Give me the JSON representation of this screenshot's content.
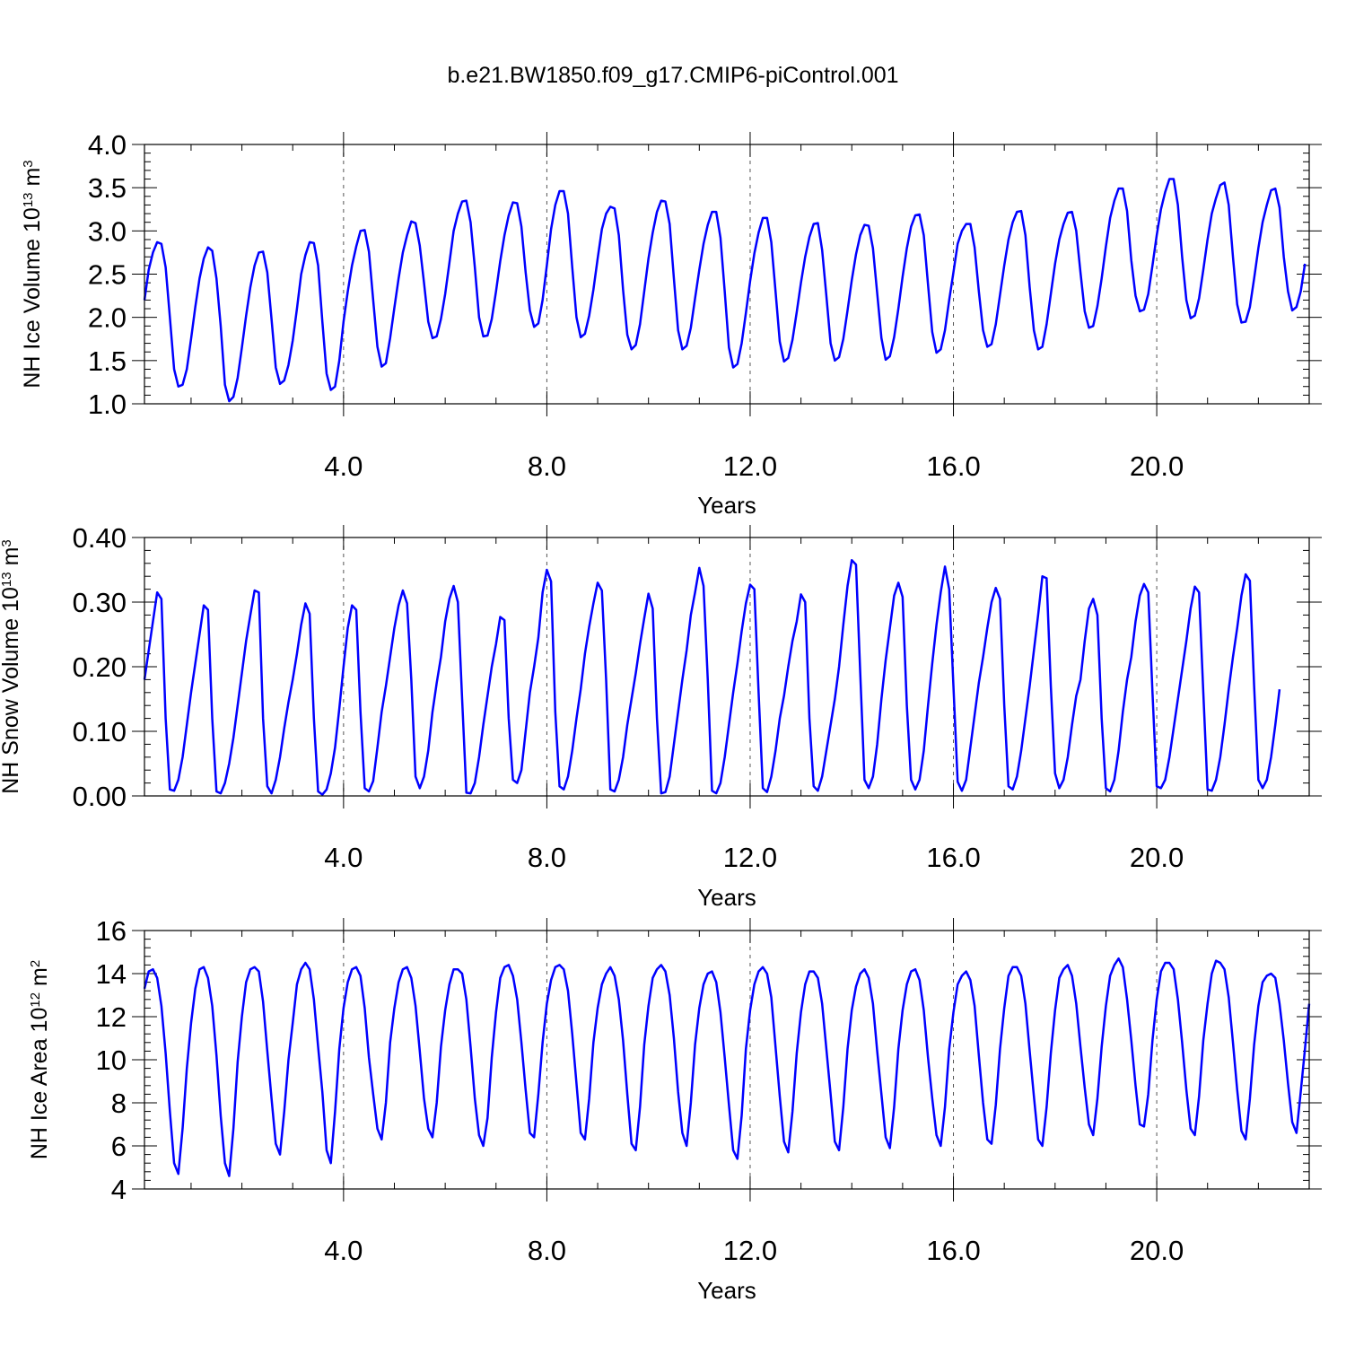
{
  "title": "b.e21.BW1850.f09_g17.CMIP6-piControl.001",
  "line_color": "#0000ff",
  "chart_data": [
    {
      "type": "line",
      "title": "b.e21.BW1850.f09_g17.CMIP6-piControl.001",
      "xlabel": "Years",
      "ylabel": {
        "main": "NH Ice Volume 10",
        "exp": "13",
        "unit": " m",
        "unit_exp": "3"
      },
      "xlim": [
        0.083,
        23.0
      ],
      "ylim": [
        1.0,
        4.0
      ],
      "xticks": [
        4.0,
        8.0,
        12.0,
        16.0,
        20.0
      ],
      "xtick_labels": [
        "4.0",
        "8.0",
        "12.0",
        "16.0",
        "20.0"
      ],
      "yticks": [
        1.0,
        1.5,
        2.0,
        2.5,
        3.0,
        3.5,
        4.0
      ],
      "ytick_labels": [
        "1.0",
        "1.5",
        "2.0",
        "2.5",
        "3.0",
        "3.5",
        "4.0"
      ],
      "grid": "dashed vertical at major x ticks",
      "series": [
        {
          "x_start": 0.083,
          "x_step": 0.0833333,
          "y": [
            2.2,
            2.55,
            2.75,
            2.87,
            2.85,
            2.58,
            2.0,
            1.4,
            1.2,
            1.22,
            1.4,
            1.75,
            2.12,
            2.45,
            2.68,
            2.81,
            2.77,
            2.45,
            1.9,
            1.22,
            1.03,
            1.08,
            1.3,
            1.65,
            2.02,
            2.35,
            2.6,
            2.75,
            2.76,
            2.52,
            1.98,
            1.42,
            1.23,
            1.27,
            1.45,
            1.73,
            2.1,
            2.5,
            2.72,
            2.87,
            2.86,
            2.6,
            1.95,
            1.35,
            1.16,
            1.2,
            1.5,
            1.95,
            2.3,
            2.6,
            2.82,
            3.0,
            3.01,
            2.76,
            2.2,
            1.66,
            1.43,
            1.47,
            1.76,
            2.11,
            2.45,
            2.75,
            2.95,
            3.11,
            3.09,
            2.83,
            2.4,
            1.95,
            1.76,
            1.78,
            1.98,
            2.27,
            2.63,
            3.0,
            3.2,
            3.34,
            3.35,
            3.1,
            2.58,
            2.0,
            1.78,
            1.79,
            1.98,
            2.3,
            2.65,
            2.95,
            3.18,
            3.33,
            3.32,
            3.05,
            2.52,
            2.08,
            1.89,
            1.93,
            2.2,
            2.6,
            3.02,
            3.3,
            3.46,
            3.46,
            3.2,
            2.58,
            2.0,
            1.77,
            1.81,
            2.02,
            2.32,
            2.68,
            3.02,
            3.2,
            3.28,
            3.26,
            2.95,
            2.32,
            1.8,
            1.63,
            1.68,
            1.92,
            2.3,
            2.68,
            2.98,
            3.22,
            3.35,
            3.34,
            3.08,
            2.45,
            1.85,
            1.63,
            1.67,
            1.88,
            2.22,
            2.55,
            2.85,
            3.07,
            3.22,
            3.22,
            2.92,
            2.3,
            1.65,
            1.42,
            1.46,
            1.7,
            2.05,
            2.42,
            2.74,
            2.98,
            3.15,
            3.15,
            2.87,
            2.3,
            1.72,
            1.49,
            1.53,
            1.74,
            2.06,
            2.4,
            2.7,
            2.93,
            3.08,
            3.09,
            2.78,
            2.25,
            1.7,
            1.5,
            1.54,
            1.75,
            2.08,
            2.43,
            2.73,
            2.95,
            3.07,
            3.06,
            2.8,
            2.28,
            1.76,
            1.51,
            1.55,
            1.77,
            2.1,
            2.47,
            2.8,
            3.05,
            3.18,
            3.19,
            2.95,
            2.38,
            1.83,
            1.59,
            1.63,
            1.85,
            2.2,
            2.52,
            2.85,
            3.0,
            3.08,
            3.08,
            2.81,
            2.3,
            1.85,
            1.66,
            1.69,
            1.92,
            2.26,
            2.6,
            2.9,
            3.1,
            3.22,
            3.23,
            2.95,
            2.35,
            1.85,
            1.63,
            1.66,
            1.92,
            2.27,
            2.62,
            2.9,
            3.08,
            3.21,
            3.22,
            3.0,
            2.52,
            2.07,
            1.88,
            1.9,
            2.13,
            2.45,
            2.82,
            3.15,
            3.35,
            3.49,
            3.49,
            3.23,
            2.66,
            2.25,
            2.07,
            2.09,
            2.27,
            2.6,
            2.95,
            3.25,
            3.45,
            3.6,
            3.6,
            3.3,
            2.7,
            2.2,
            1.99,
            2.02,
            2.22,
            2.55,
            2.9,
            3.2,
            3.38,
            3.53,
            3.56,
            3.3,
            2.7,
            2.15,
            1.94,
            1.95,
            2.12,
            2.45,
            2.8,
            3.1,
            3.3,
            3.47,
            3.49,
            3.27,
            2.7,
            2.3,
            2.08,
            2.12,
            2.3,
            2.62
          ]
        }
      ]
    },
    {
      "type": "line",
      "xlabel": "Years",
      "ylabel": {
        "main": "NH Snow Volume 10",
        "exp": "13",
        "unit": " m",
        "unit_exp": "3"
      },
      "xlim": [
        0.083,
        23.0
      ],
      "ylim": [
        0.0,
        0.4
      ],
      "xticks": [
        4.0,
        8.0,
        12.0,
        16.0,
        20.0
      ],
      "xtick_labels": [
        "4.0",
        "8.0",
        "12.0",
        "16.0",
        "20.0"
      ],
      "yticks": [
        0.0,
        0.1,
        0.2,
        0.3,
        0.4
      ],
      "ytick_labels": [
        "0.00",
        "0.10",
        "0.20",
        "0.30",
        "0.40"
      ],
      "grid": "dashed vertical at major x ticks",
      "series": [
        {
          "x_start": 0.083,
          "x_step": 0.0833333,
          "y": [
            0.18,
            0.225,
            0.27,
            0.315,
            0.305,
            0.12,
            0.01,
            0.008,
            0.025,
            0.06,
            0.11,
            0.16,
            0.205,
            0.25,
            0.295,
            0.288,
            0.12,
            0.007,
            0.004,
            0.02,
            0.05,
            0.09,
            0.14,
            0.19,
            0.24,
            0.28,
            0.318,
            0.315,
            0.12,
            0.015,
            0.004,
            0.025,
            0.06,
            0.105,
            0.145,
            0.18,
            0.22,
            0.265,
            0.298,
            0.282,
            0.12,
            0.007,
            0.002,
            0.01,
            0.035,
            0.075,
            0.135,
            0.2,
            0.26,
            0.295,
            0.288,
            0.13,
            0.012,
            0.007,
            0.023,
            0.075,
            0.13,
            0.17,
            0.215,
            0.26,
            0.295,
            0.318,
            0.298,
            0.18,
            0.03,
            0.012,
            0.03,
            0.07,
            0.13,
            0.175,
            0.215,
            0.27,
            0.305,
            0.325,
            0.3,
            0.15,
            0.005,
            0.004,
            0.02,
            0.06,
            0.11,
            0.155,
            0.2,
            0.235,
            0.277,
            0.272,
            0.12,
            0.025,
            0.02,
            0.04,
            0.1,
            0.16,
            0.2,
            0.245,
            0.315,
            0.35,
            0.332,
            0.13,
            0.015,
            0.01,
            0.03,
            0.07,
            0.12,
            0.165,
            0.22,
            0.262,
            0.298,
            0.33,
            0.318,
            0.18,
            0.01,
            0.007,
            0.025,
            0.06,
            0.11,
            0.15,
            0.19,
            0.235,
            0.275,
            0.313,
            0.29,
            0.12,
            0.004,
            0.006,
            0.03,
            0.08,
            0.13,
            0.18,
            0.225,
            0.28,
            0.315,
            0.353,
            0.325,
            0.18,
            0.008,
            0.004,
            0.02,
            0.06,
            0.11,
            0.16,
            0.205,
            0.255,
            0.298,
            0.327,
            0.32,
            0.16,
            0.012,
            0.006,
            0.03,
            0.07,
            0.12,
            0.155,
            0.2,
            0.24,
            0.27,
            0.312,
            0.3,
            0.12,
            0.015,
            0.008,
            0.03,
            0.07,
            0.11,
            0.15,
            0.2,
            0.265,
            0.325,
            0.365,
            0.358,
            0.19,
            0.025,
            0.012,
            0.03,
            0.08,
            0.15,
            0.21,
            0.26,
            0.31,
            0.33,
            0.308,
            0.14,
            0.025,
            0.01,
            0.025,
            0.07,
            0.14,
            0.205,
            0.265,
            0.315,
            0.355,
            0.32,
            0.17,
            0.022,
            0.008,
            0.025,
            0.075,
            0.125,
            0.175,
            0.215,
            0.26,
            0.3,
            0.322,
            0.305,
            0.14,
            0.015,
            0.01,
            0.03,
            0.07,
            0.12,
            0.17,
            0.225,
            0.28,
            0.34,
            0.337,
            0.17,
            0.035,
            0.012,
            0.025,
            0.06,
            0.11,
            0.155,
            0.18,
            0.24,
            0.29,
            0.305,
            0.28,
            0.12,
            0.012,
            0.007,
            0.025,
            0.07,
            0.13,
            0.18,
            0.215,
            0.27,
            0.31,
            0.328,
            0.315,
            0.16,
            0.015,
            0.012,
            0.025,
            0.06,
            0.105,
            0.15,
            0.195,
            0.24,
            0.29,
            0.324,
            0.315,
            0.16,
            0.01,
            0.008,
            0.025,
            0.06,
            0.11,
            0.165,
            0.215,
            0.26,
            0.31,
            0.343,
            0.333,
            0.17,
            0.025,
            0.012,
            0.025,
            0.06,
            0.11,
            0.165
          ]
        }
      ]
    },
    {
      "type": "line",
      "xlabel": "Years",
      "ylabel": {
        "main": "NH Ice Area 10",
        "exp": "12",
        "unit": " m",
        "unit_exp": "2"
      },
      "xlim": [
        0.083,
        23.0
      ],
      "ylim": [
        4,
        16
      ],
      "xticks": [
        4.0,
        8.0,
        12.0,
        16.0,
        20.0
      ],
      "xtick_labels": [
        "4.0",
        "8.0",
        "12.0",
        "16.0",
        "20.0"
      ],
      "yticks": [
        4,
        6,
        8,
        10,
        12,
        14,
        16
      ],
      "ytick_labels": [
        "4",
        "6",
        "8",
        "10",
        "12",
        "14",
        "16"
      ],
      "grid": "dashed vertical at major x ticks",
      "series": [
        {
          "x_start": 0.083,
          "x_step": 0.0833333,
          "y": [
            13.3,
            14.1,
            14.2,
            13.8,
            12.5,
            10.3,
            7.6,
            5.2,
            4.7,
            6.8,
            9.6,
            11.7,
            13.3,
            14.2,
            14.3,
            13.8,
            12.5,
            10.2,
            7.4,
            5.2,
            4.6,
            6.8,
            9.9,
            12.0,
            13.6,
            14.2,
            14.3,
            14.1,
            12.7,
            10.4,
            8.2,
            6.1,
            5.6,
            7.6,
            10.0,
            11.7,
            13.5,
            14.2,
            14.5,
            14.2,
            12.8,
            10.6,
            8.5,
            5.8,
            5.2,
            7.6,
            10.5,
            12.4,
            13.6,
            14.2,
            14.3,
            13.9,
            12.4,
            10.1,
            8.4,
            6.8,
            6.3,
            8.0,
            10.8,
            12.4,
            13.6,
            14.2,
            14.3,
            13.8,
            12.5,
            10.4,
            8.2,
            6.8,
            6.4,
            8.0,
            10.6,
            12.3,
            13.5,
            14.2,
            14.2,
            14.0,
            12.8,
            10.6,
            8.2,
            6.5,
            6.0,
            7.3,
            10.1,
            12.2,
            13.8,
            14.3,
            14.4,
            13.9,
            12.8,
            10.8,
            8.6,
            6.6,
            6.4,
            8.4,
            10.8,
            12.6,
            13.7,
            14.3,
            14.4,
            14.2,
            13.2,
            11.2,
            8.9,
            6.6,
            6.3,
            8.2,
            10.8,
            12.4,
            13.5,
            14.0,
            14.3,
            13.9,
            12.8,
            10.9,
            8.4,
            6.1,
            5.8,
            7.8,
            10.7,
            12.5,
            13.8,
            14.2,
            14.4,
            14.1,
            13.0,
            11.0,
            8.5,
            6.6,
            6.0,
            8.0,
            10.7,
            12.4,
            13.5,
            14.0,
            14.1,
            13.6,
            12.2,
            10.1,
            7.9,
            5.8,
            5.4,
            7.4,
            10.5,
            12.3,
            13.5,
            14.1,
            14.3,
            14.0,
            12.9,
            10.6,
            8.3,
            6.2,
            5.7,
            7.6,
            10.3,
            12.2,
            13.5,
            14.1,
            14.1,
            13.8,
            12.6,
            10.5,
            8.4,
            6.2,
            5.8,
            7.8,
            10.5,
            12.3,
            13.4,
            14.0,
            14.2,
            13.8,
            12.6,
            10.4,
            8.4,
            6.4,
            5.9,
            7.8,
            10.5,
            12.3,
            13.5,
            14.1,
            14.2,
            13.7,
            12.3,
            10.1,
            8.2,
            6.5,
            6.0,
            7.8,
            10.5,
            12.2,
            13.5,
            13.9,
            14.1,
            13.7,
            12.5,
            10.2,
            8.0,
            6.3,
            6.1,
            7.9,
            10.5,
            12.4,
            13.9,
            14.3,
            14.3,
            13.9,
            12.6,
            10.4,
            8.3,
            6.3,
            6.0,
            7.8,
            10.3,
            12.3,
            13.8,
            14.2,
            14.4,
            13.9,
            12.6,
            10.6,
            8.7,
            7.0,
            6.5,
            8.2,
            10.6,
            12.5,
            13.9,
            14.4,
            14.7,
            14.3,
            12.8,
            10.9,
            8.8,
            7.0,
            6.9,
            8.4,
            10.9,
            12.8,
            14.1,
            14.5,
            14.5,
            14.2,
            12.8,
            10.8,
            8.6,
            6.8,
            6.5,
            8.3,
            10.9,
            12.6,
            14.0,
            14.6,
            14.5,
            14.2,
            12.9,
            10.8,
            8.6,
            6.7,
            6.3,
            8.2,
            10.7,
            12.5,
            13.6,
            13.9,
            14.0,
            13.8,
            12.6,
            10.9,
            8.9,
            7.1,
            6.6,
            8.5,
            10.5,
            12.6
          ]
        }
      ]
    }
  ]
}
